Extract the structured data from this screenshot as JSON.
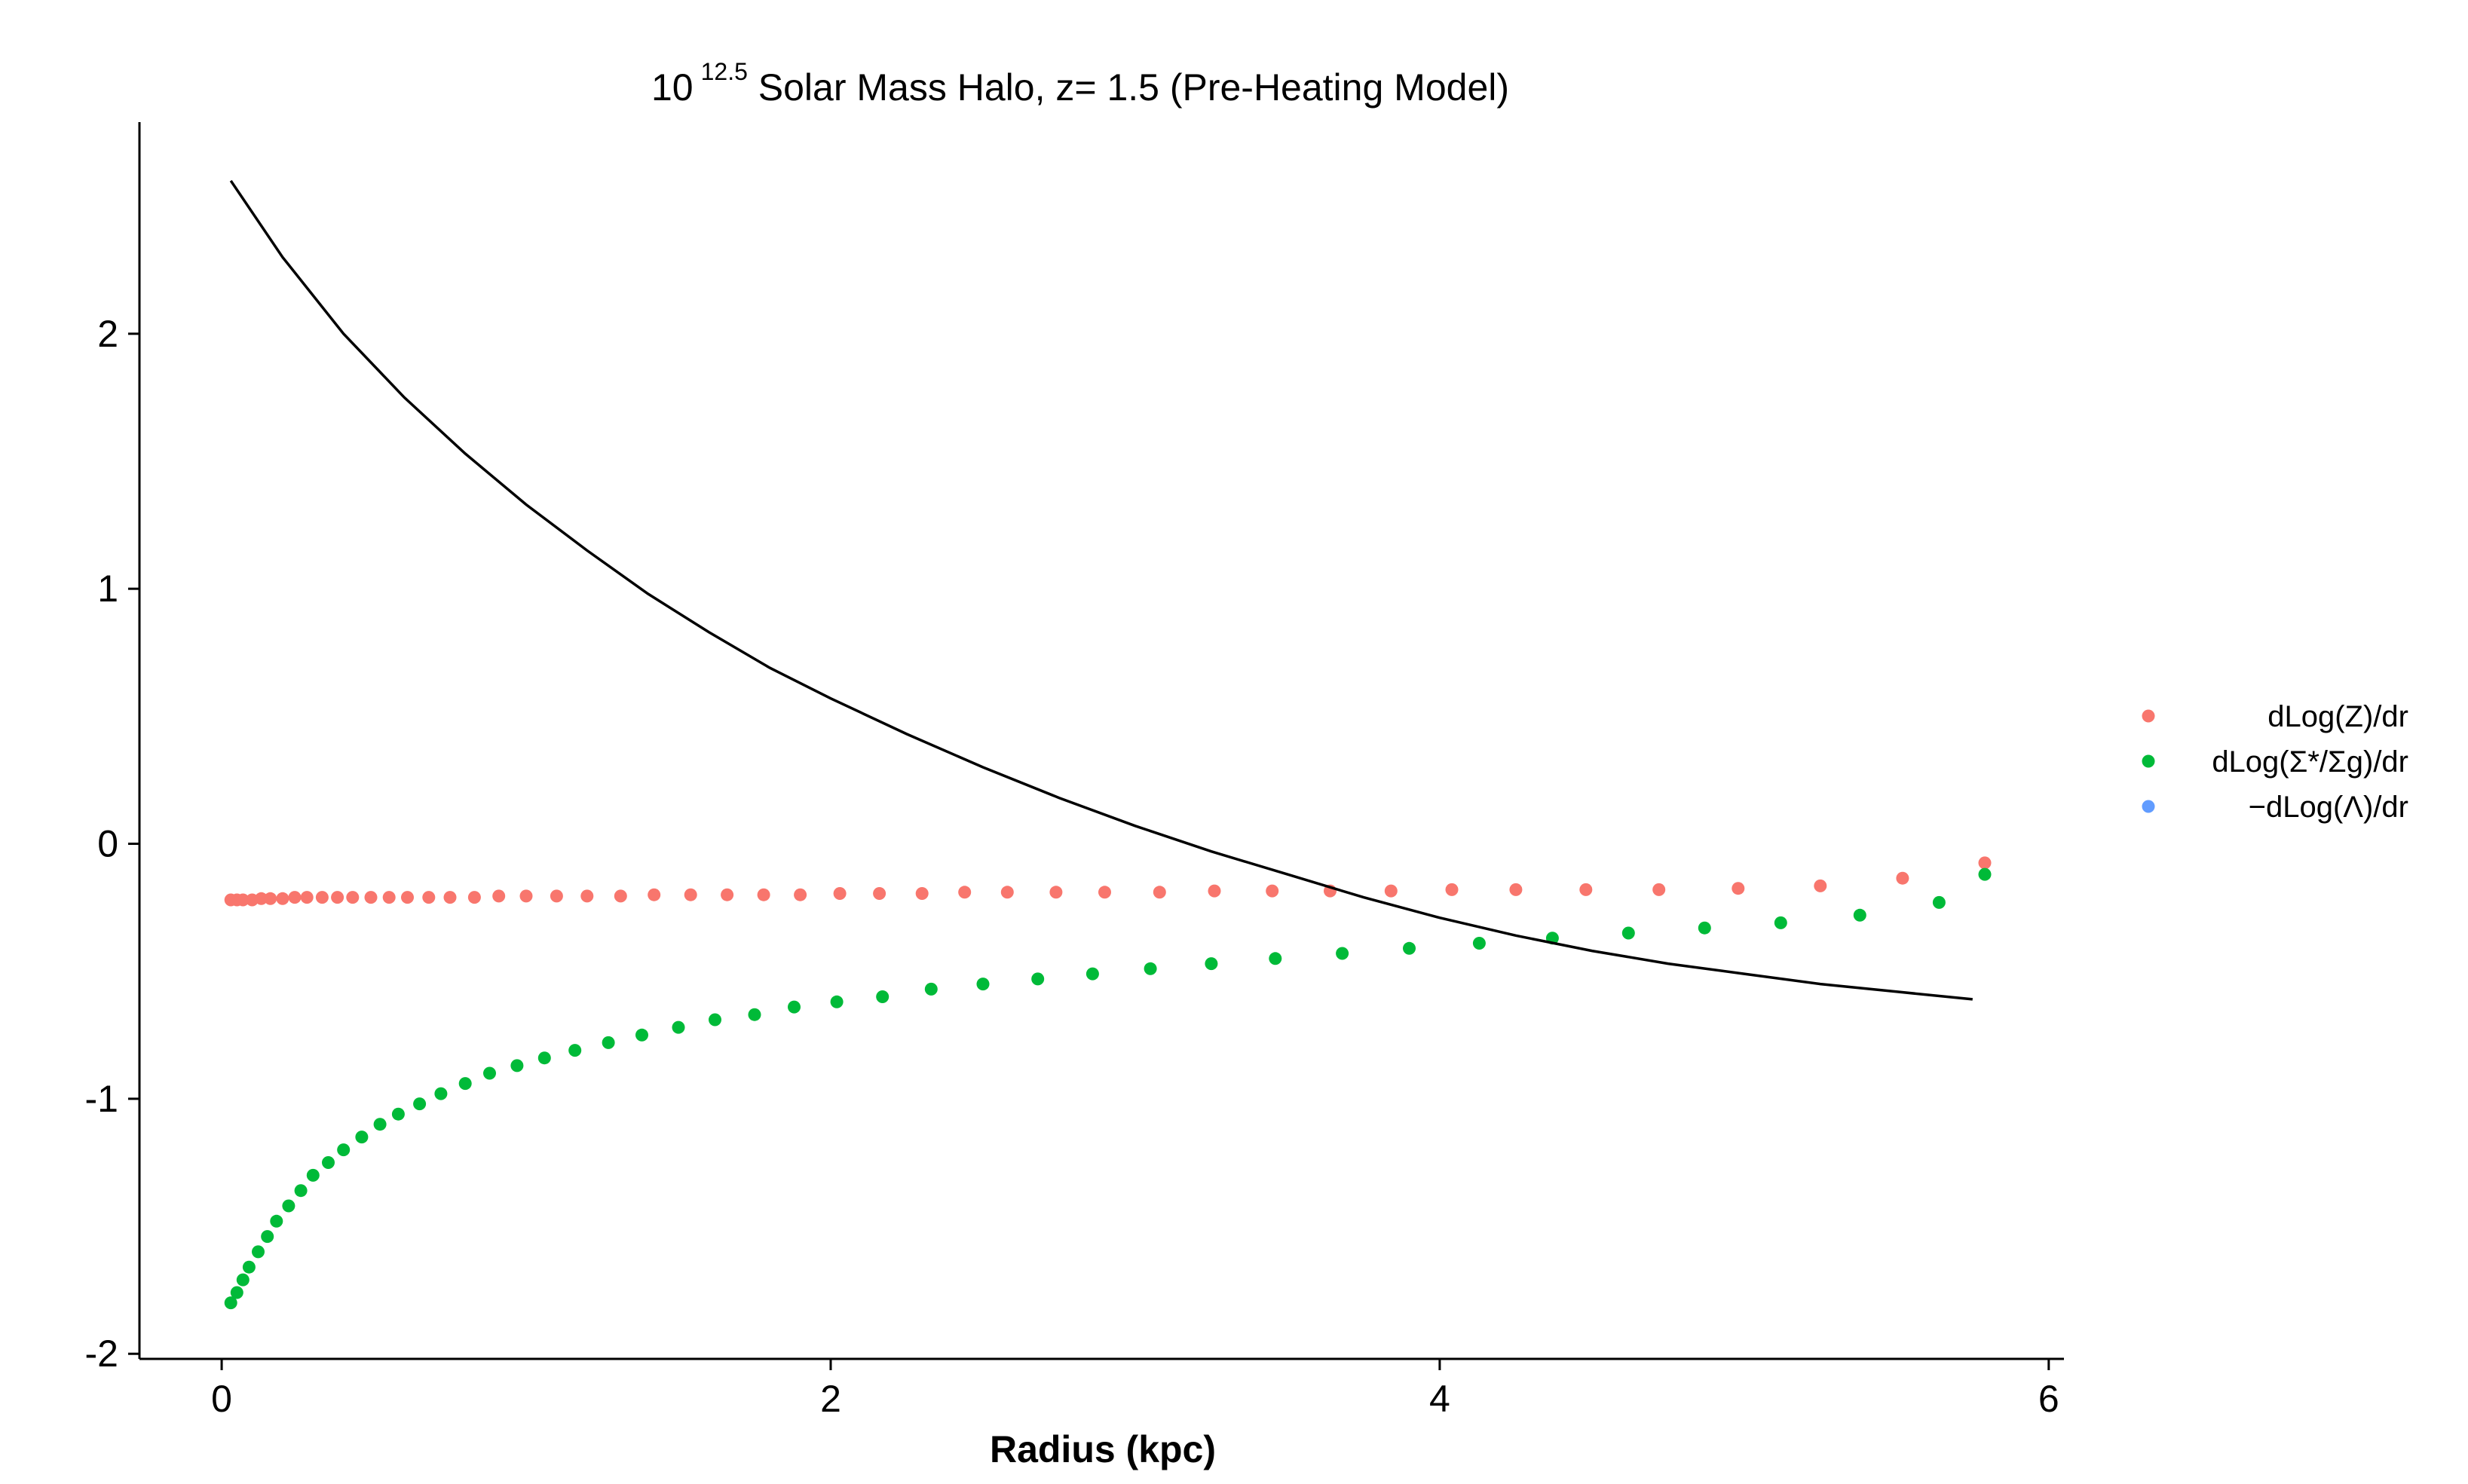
{
  "chart_data": {
    "type": "scatter",
    "title": {
      "base": "10",
      "exponent": "12.5",
      "rest": " Solar Mass Halo, z= 1.5 (Pre-Heating Model)"
    },
    "xlabel": "Radius (kpc)",
    "ylabel": "",
    "xlim": [
      -0.27,
      6.05
    ],
    "ylim": [
      -2.02,
      2.83
    ],
    "xticks": [
      0,
      2,
      4,
      6
    ],
    "yticks": [
      -2,
      -1,
      0,
      1,
      2
    ],
    "xtick_labels": [
      "0",
      "2",
      "4",
      "6"
    ],
    "ytick_labels": [
      "-2",
      "-1",
      "0",
      "1",
      "2"
    ],
    "grid": false,
    "legend_position": "right",
    "legend": [
      {
        "label": "dLog(Z)/dr",
        "color": "#F8766D"
      },
      {
        "label": "dLog(Σ*/Σg)/dr",
        "color": "#00BA38"
      },
      {
        "label": "−dLog(Λ)/dr",
        "color": "#619CFF"
      }
    ],
    "series": [
      {
        "name": "dLog(Z)/dr",
        "kind": "points",
        "color": "#F8766D",
        "x": [
          0.03,
          0.05,
          0.07,
          0.1,
          0.13,
          0.16,
          0.2,
          0.24,
          0.28,
          0.33,
          0.38,
          0.43,
          0.49,
          0.55,
          0.61,
          0.68,
          0.75,
          0.83,
          0.91,
          1.0,
          1.1,
          1.2,
          1.31,
          1.42,
          1.54,
          1.66,
          1.78,
          1.9,
          2.03,
          2.16,
          2.3,
          2.44,
          2.58,
          2.74,
          2.9,
          3.08,
          3.26,
          3.45,
          3.64,
          3.84,
          4.04,
          4.25,
          4.48,
          4.72,
          4.98,
          5.25,
          5.52,
          5.79
        ],
        "y": [
          -0.22,
          -0.22,
          -0.22,
          -0.22,
          -0.215,
          -0.215,
          -0.215,
          -0.21,
          -0.21,
          -0.21,
          -0.21,
          -0.21,
          -0.21,
          -0.21,
          -0.21,
          -0.21,
          -0.21,
          -0.21,
          -0.205,
          -0.205,
          -0.205,
          -0.205,
          -0.205,
          -0.2,
          -0.2,
          -0.2,
          -0.2,
          -0.2,
          -0.195,
          -0.195,
          -0.195,
          -0.19,
          -0.19,
          -0.19,
          -0.19,
          -0.19,
          -0.185,
          -0.185,
          -0.185,
          -0.185,
          -0.18,
          -0.18,
          -0.18,
          -0.18,
          -0.175,
          -0.165,
          -0.135,
          -0.075
        ]
      },
      {
        "name": "dLog(Σ*/Σg)/dr",
        "kind": "points",
        "color": "#00BA38",
        "x": [
          0.03,
          0.05,
          0.07,
          0.09,
          0.12,
          0.15,
          0.18,
          0.22,
          0.26,
          0.3,
          0.35,
          0.4,
          0.46,
          0.52,
          0.58,
          0.65,
          0.72,
          0.8,
          0.88,
          0.97,
          1.06,
          1.16,
          1.27,
          1.38,
          1.5,
          1.62,
          1.75,
          1.88,
          2.02,
          2.17,
          2.33,
          2.5,
          2.68,
          2.86,
          3.05,
          3.25,
          3.46,
          3.68,
          3.9,
          4.13,
          4.37,
          4.62,
          4.87,
          5.12,
          5.38,
          5.64,
          5.79
        ],
        "y": [
          -1.8,
          -1.76,
          -1.71,
          -1.66,
          -1.6,
          -1.54,
          -1.48,
          -1.42,
          -1.36,
          -1.3,
          -1.25,
          -1.2,
          -1.15,
          -1.1,
          -1.06,
          -1.02,
          -0.98,
          -0.94,
          -0.9,
          -0.87,
          -0.84,
          -0.81,
          -0.78,
          -0.75,
          -0.72,
          -0.69,
          -0.67,
          -0.64,
          -0.62,
          -0.6,
          -0.57,
          -0.55,
          -0.53,
          -0.51,
          -0.49,
          -0.47,
          -0.45,
          -0.43,
          -0.41,
          -0.39,
          -0.37,
          -0.35,
          -0.33,
          -0.31,
          -0.28,
          -0.23,
          -0.12
        ]
      },
      {
        "name": "−dLog(Λ)/dr",
        "kind": "points",
        "color": "#619CFF",
        "x": [],
        "y": []
      },
      {
        "kind": "line",
        "color": "#000000",
        "x": [
          0.03,
          0.2,
          0.4,
          0.6,
          0.8,
          1.0,
          1.2,
          1.4,
          1.6,
          1.8,
          2.0,
          2.25,
          2.5,
          2.75,
          3.0,
          3.25,
          3.5,
          3.75,
          4.0,
          4.25,
          4.5,
          4.75,
          5.0,
          5.25,
          5.5,
          5.75
        ],
        "y": [
          2.6,
          2.3,
          2.0,
          1.75,
          1.53,
          1.33,
          1.15,
          0.98,
          0.83,
          0.69,
          0.57,
          0.43,
          0.3,
          0.18,
          0.07,
          -0.03,
          -0.12,
          -0.21,
          -0.29,
          -0.36,
          -0.42,
          -0.47,
          -0.51,
          -0.55,
          -0.58,
          -0.61
        ]
      }
    ]
  }
}
